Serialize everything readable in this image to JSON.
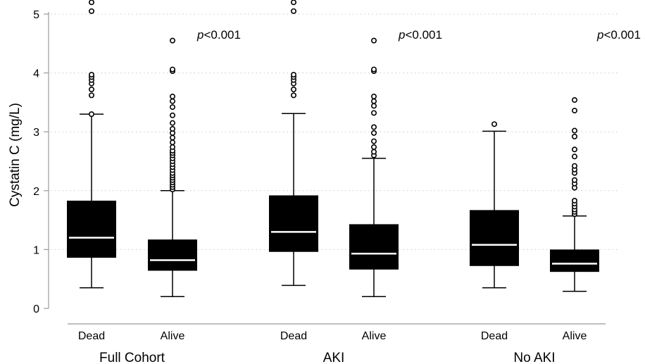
{
  "chart_data": {
    "type": "boxplot",
    "ylabel": "Cystatin C (mg/L)",
    "ylim": [
      0,
      5
    ],
    "yticks": [
      "0",
      "1",
      "2",
      "3",
      "4",
      "5"
    ],
    "grid": "horizontal dotted",
    "colors": {
      "box": "#000000",
      "median": "#ffffff",
      "grid": "#c8c8c8",
      "axis": "#999999"
    },
    "groups": [
      {
        "name": "Full Cohort",
        "p_italic": "p",
        "p_rest": "<0.001",
        "boxes": [
          {
            "label": "Dead",
            "min": 0.35,
            "q1": 0.86,
            "median": 1.2,
            "q3": 1.83,
            "max": 3.3,
            "outliers": [
              3.3,
              3.62,
              3.72,
              3.82,
              3.88,
              3.93,
              3.97,
              5.05,
              5.2
            ]
          },
          {
            "label": "Alive",
            "min": 0.2,
            "q1": 0.64,
            "median": 0.82,
            "q3": 1.17,
            "max": 2.0,
            "outliers": [
              2.02,
              2.06,
              2.1,
              2.14,
              2.18,
              2.22,
              2.26,
              2.3,
              2.35,
              2.4,
              2.45,
              2.5,
              2.55,
              2.6,
              2.64,
              2.68,
              2.74,
              2.82,
              2.9,
              2.98,
              3.05,
              3.15,
              3.28,
              3.42,
              3.52,
              3.6,
              4.03,
              4.06,
              4.55
            ]
          }
        ]
      },
      {
        "name": "AKI",
        "p_italic": "p",
        "p_rest": "<0.001",
        "boxes": [
          {
            "label": "Dead",
            "min": 0.39,
            "q1": 0.96,
            "median": 1.3,
            "q3": 1.92,
            "max": 3.31,
            "outliers": [
              3.62,
              3.72,
              3.82,
              3.88,
              3.93,
              3.97,
              5.05,
              5.2
            ]
          },
          {
            "label": "Alive",
            "min": 0.2,
            "q1": 0.66,
            "median": 0.93,
            "q3": 1.43,
            "max": 2.55,
            "outliers": [
              2.6,
              2.66,
              2.74,
              2.84,
              2.98,
              3.08,
              3.32,
              3.44,
              3.52,
              3.6,
              4.03,
              4.06,
              4.55
            ]
          }
        ]
      },
      {
        "name": "No AKI",
        "p_italic": "p",
        "p_rest": "<0.001",
        "boxes": [
          {
            "label": "Dead",
            "min": 0.35,
            "q1": 0.72,
            "median": 1.08,
            "q3": 1.67,
            "max": 3.01,
            "outliers": [
              3.13
            ]
          },
          {
            "label": "Alive",
            "min": 0.29,
            "q1": 0.62,
            "median": 0.76,
            "q3": 1.0,
            "max": 1.57,
            "outliers": [
              1.6,
              1.64,
              1.68,
              1.73,
              1.78,
              1.83,
              2.05,
              2.12,
              2.18,
              2.3,
              2.36,
              2.42,
              2.58,
              2.7,
              2.92,
              3.02,
              3.36,
              3.54
            ]
          }
        ]
      }
    ]
  }
}
